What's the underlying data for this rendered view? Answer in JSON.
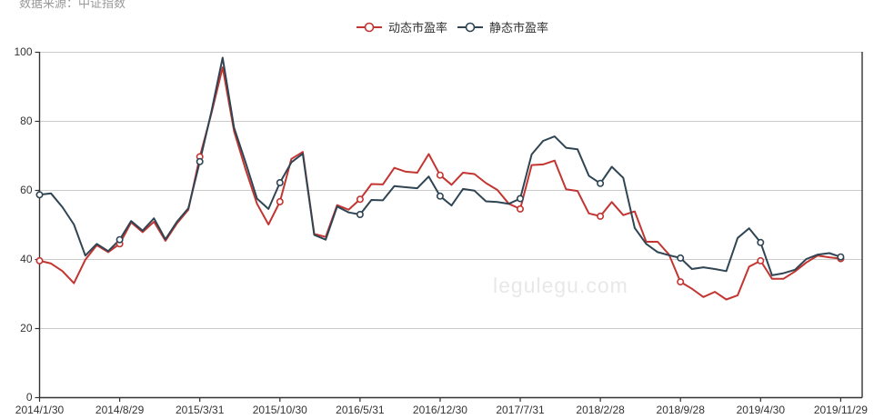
{
  "header": {
    "source_label": "数据来源：中证指数"
  },
  "watermark": {
    "text": "legulegu.com"
  },
  "colors": {
    "axis": "#333333",
    "gridline": "#cccccc",
    "tick_label": "#333333",
    "series_dynamic": "#c23531",
    "series_static": "#2f4554",
    "marker_fill": "#ffffff"
  },
  "chart_data": {
    "type": "line",
    "title": "",
    "xlabel": "",
    "ylabel": "",
    "ylim": [
      0,
      100
    ],
    "y_ticks": [
      0,
      20,
      40,
      60,
      80,
      100
    ],
    "grid": true,
    "legend_position": "top-center",
    "x_tick_labels": [
      "2014/1/30",
      "2014/8/29",
      "2015/3/31",
      "2015/10/30",
      "2016/5/31",
      "2016/12/30",
      "2017/7/31",
      "2018/2/28",
      "2018/9/28",
      "2019/4/30",
      "2019/11/29"
    ],
    "x_tick_indices": [
      0,
      7,
      14,
      21,
      28,
      35,
      42,
      49,
      56,
      63,
      70
    ],
    "marker_indices": [
      0,
      7,
      14,
      21,
      28,
      35,
      42,
      49,
      56,
      63,
      70
    ],
    "series": [
      {
        "name": "动态市盈率",
        "key": "dynamic-pe",
        "color": "#c23531",
        "values": [
          39.5,
          38.7,
          36.5,
          33.0,
          39.8,
          44.0,
          42.0,
          44.4,
          50.6,
          47.8,
          50.8,
          45.3,
          50.3,
          54.3,
          69.6,
          82.0,
          95.5,
          77.0,
          66.0,
          56.0,
          50.0,
          56.6,
          69.0,
          71.0,
          47.3,
          46.4,
          55.6,
          54.3,
          57.3,
          61.7,
          61.6,
          66.4,
          65.3,
          65.0,
          70.4,
          64.3,
          61.5,
          65.0,
          64.6,
          62.0,
          60.0,
          56.0,
          54.5,
          67.2,
          67.4,
          68.5,
          60.2,
          59.7,
          53.2,
          52.4,
          56.5,
          52.7,
          53.8,
          45.0,
          45.0,
          41.3,
          33.4,
          31.4,
          29.0,
          30.5,
          28.3,
          29.5,
          37.8,
          39.5,
          34.3,
          34.3,
          36.4,
          39.0,
          41.0,
          40.5,
          40.1
        ]
      },
      {
        "name": "静态市盈率",
        "key": "static-pe",
        "color": "#2f4554",
        "values": [
          58.6,
          59.0,
          55.0,
          50.0,
          41.0,
          44.4,
          42.3,
          45.6,
          51.0,
          48.2,
          51.8,
          45.7,
          50.8,
          54.7,
          68.2,
          82.5,
          98.3,
          78.0,
          68.0,
          57.5,
          54.5,
          62.1,
          68.0,
          70.5,
          47.0,
          45.6,
          55.2,
          53.5,
          52.9,
          57.1,
          57.0,
          61.1,
          60.8,
          60.5,
          63.9,
          58.2,
          55.5,
          60.3,
          59.8,
          56.7,
          56.5,
          56.0,
          57.5,
          70.3,
          74.2,
          75.5,
          72.2,
          71.8,
          64.1,
          61.9,
          66.7,
          63.5,
          49.0,
          44.4,
          42.0,
          41.1,
          40.3,
          37.1,
          37.6,
          37.1,
          36.5,
          46.1,
          48.9,
          44.8,
          35.3,
          35.9,
          36.9,
          40.0,
          41.3,
          41.7,
          40.6
        ]
      }
    ]
  }
}
